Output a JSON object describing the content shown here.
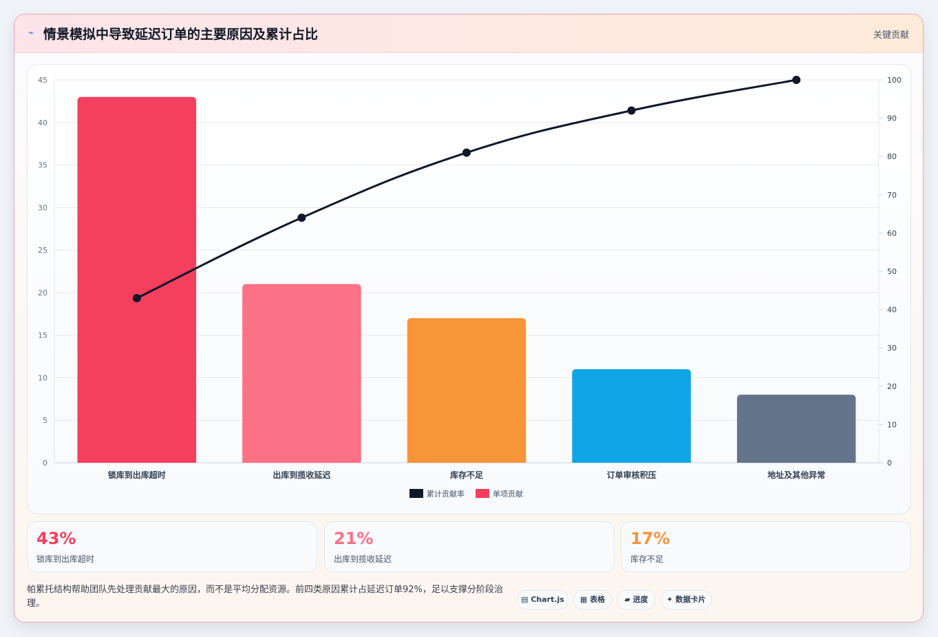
{
  "header": {
    "title": "情景模拟中导致延迟订单的主要原因及累计占比",
    "icon": "bolt-icon",
    "tag": "关键贡献"
  },
  "chart_data": {
    "type": "bar",
    "categories": [
      "锁库到出库超时",
      "出库到揽收延迟",
      "库存不足",
      "订单审核积压",
      "地址及其他异常"
    ],
    "series": [
      {
        "name": "单项贡献",
        "type": "bar",
        "axis": "left",
        "values": [
          43,
          21,
          17,
          11,
          8
        ],
        "colors": [
          "#f43f5e",
          "#fb7185",
          "#f79539",
          "#10a6e6",
          "#64748b"
        ]
      },
      {
        "name": "累计贡献率",
        "type": "line",
        "axis": "right",
        "values": [
          43,
          64,
          81,
          92,
          100
        ],
        "color": "#0f172a"
      }
    ],
    "y_left": {
      "ylim": [
        0,
        45
      ],
      "ticks": [
        0,
        5,
        10,
        15,
        20,
        25,
        30,
        35,
        40,
        45
      ]
    },
    "y_right": {
      "ylim": [
        0,
        100
      ],
      "ticks": [
        0,
        10,
        20,
        30,
        40,
        50,
        60,
        70,
        80,
        90,
        100
      ]
    },
    "legend": [
      {
        "label": "累计贡献率",
        "color": "#0f172a"
      },
      {
        "label": "单项贡献",
        "color": "#f43f5e"
      }
    ],
    "legend_position": "bottom",
    "grid": true
  },
  "stats": [
    {
      "value": "43%",
      "label": "锁库到出库超时",
      "color": "#f43f5e"
    },
    {
      "value": "21%",
      "label": "出库到揽收延迟",
      "color": "#fb7185"
    },
    {
      "value": "17%",
      "label": "库存不足",
      "color": "#f79539"
    }
  ],
  "note": "帕累托结构帮助团队先处理贡献最大的原因，而不是平均分配资源。前四类原因累计占延迟订单92%，足以支撑分阶段治理。",
  "chips": [
    {
      "label": "▤ Chart.js"
    },
    {
      "label": "▦ 表格"
    },
    {
      "label": "▰ 进度"
    },
    {
      "label": "✦ 数据卡片"
    }
  ]
}
